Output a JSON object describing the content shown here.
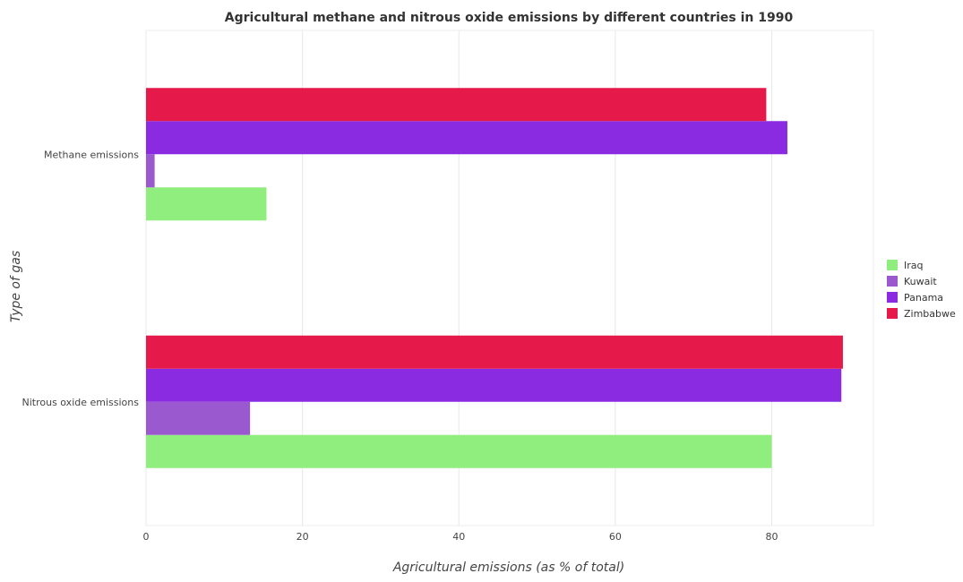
{
  "chart_data": {
    "type": "bar",
    "orientation": "horizontal",
    "title": "Agricultural methane and nitrous oxide emissions by different countries in 1990",
    "xlabel": "Agricultural emissions (as % of total)",
    "ylabel": "Type of gas",
    "categories": [
      "Methane emissions",
      "Nitrous oxide emissions"
    ],
    "xlim": [
      0,
      93
    ],
    "xticks": [
      0,
      20,
      40,
      60,
      80
    ],
    "grid": true,
    "legend_position": "right",
    "series": [
      {
        "name": "Iraq",
        "color": "#90ee7e",
        "values": [
          15.4,
          80.0
        ]
      },
      {
        "name": "Kuwait",
        "color": "#9b59d0",
        "values": [
          1.1,
          13.3
        ]
      },
      {
        "name": "Panama",
        "color": "#8a2be2",
        "values": [
          82.0,
          88.9
        ]
      },
      {
        "name": "Zimbabwe",
        "color": "#e6194b",
        "values": [
          79.3,
          89.1
        ]
      }
    ]
  }
}
